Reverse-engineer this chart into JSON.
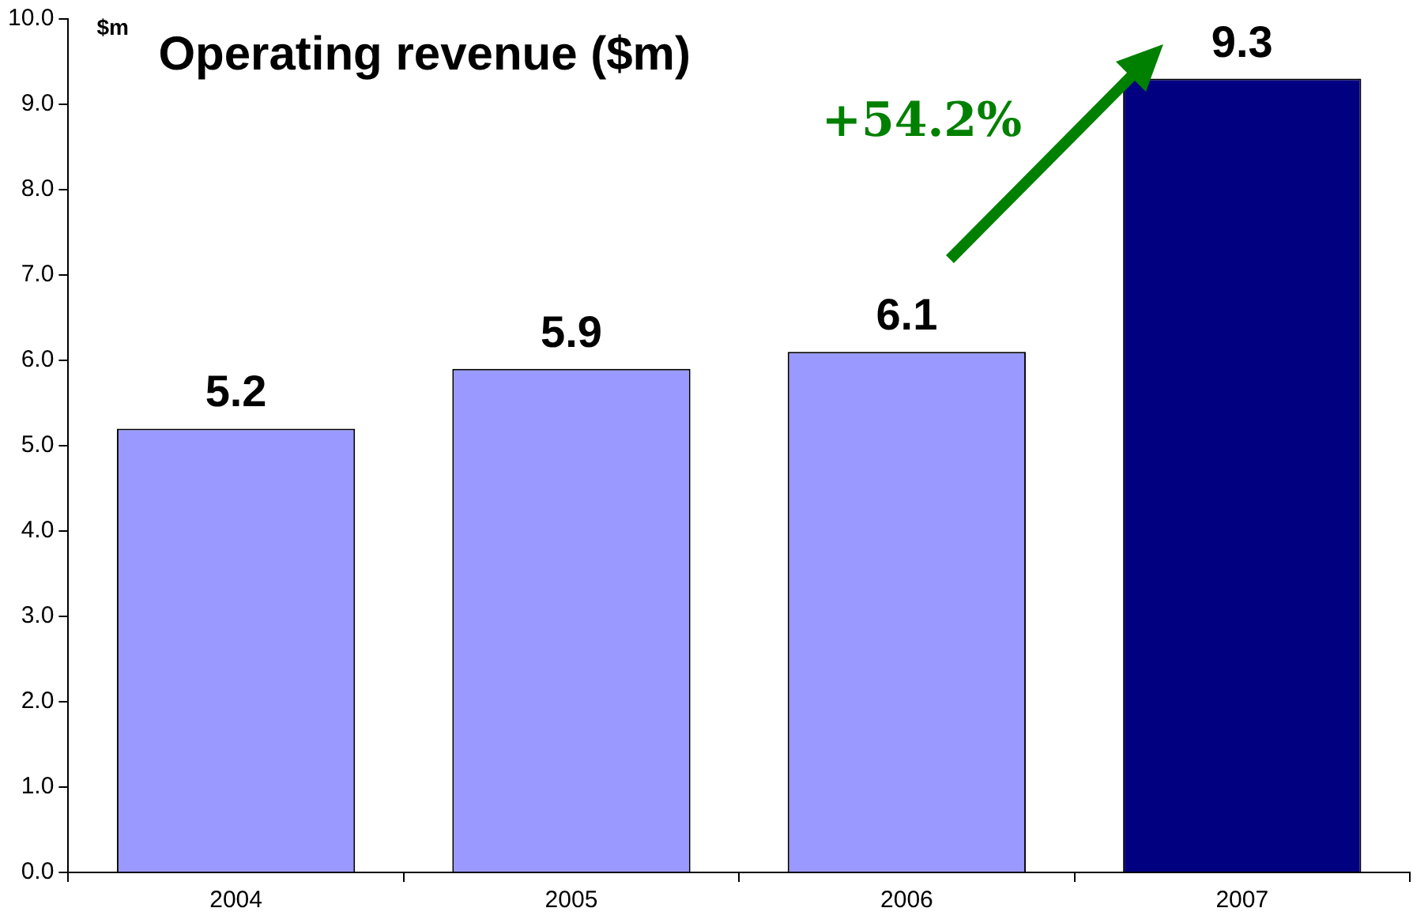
{
  "chart_data": {
    "type": "bar",
    "title": "Operating revenue ($m)",
    "ylabel": "$m",
    "categories": [
      "2004",
      "2005",
      "2006",
      "2007"
    ],
    "values": [
      5.2,
      5.9,
      6.1,
      9.3
    ],
    "colors": [
      "#9999ff",
      "#9999ff",
      "#9999ff",
      "#000080"
    ],
    "ylim": [
      0,
      10
    ],
    "yticks": [
      {
        "value": 0,
        "label": "0.0"
      },
      {
        "value": 1,
        "label": "1.0"
      },
      {
        "value": 2,
        "label": "2.0"
      },
      {
        "value": 3,
        "label": "3.0"
      },
      {
        "value": 4,
        "label": "4.0"
      },
      {
        "value": 5,
        "label": "5.0"
      },
      {
        "value": 6,
        "label": "6.0"
      },
      {
        "value": 7,
        "label": "7.0"
      },
      {
        "value": 8,
        "label": "8.0"
      },
      {
        "value": 9,
        "label": "9.0"
      },
      {
        "value": 10,
        "label": "10.0"
      }
    ],
    "annotations": [
      "+54.2%"
    ],
    "data_labels": true,
    "grid": false,
    "legend": false
  }
}
